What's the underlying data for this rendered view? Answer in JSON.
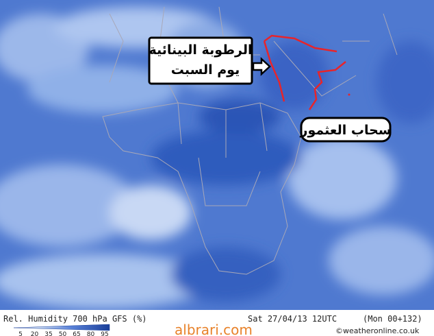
{
  "map": {
    "annotations": [
      {
        "lines": [
          "الرطوبة البينائية",
          "يوم السبت"
        ]
      },
      {
        "lines": [
          "سحاب العثمور"
        ]
      }
    ]
  },
  "footer": {
    "title": "Rel. Humidity 700 hPa GFS (%)",
    "date": "Sat 27/04/13 12UTC",
    "run": "(Mon 00+132)",
    "watermark": "albrari.com",
    "credit": "©weatheronline.co.uk",
    "legend": {
      "ticks": [
        5,
        20,
        35,
        50,
        65,
        80,
        95
      ]
    }
  }
}
